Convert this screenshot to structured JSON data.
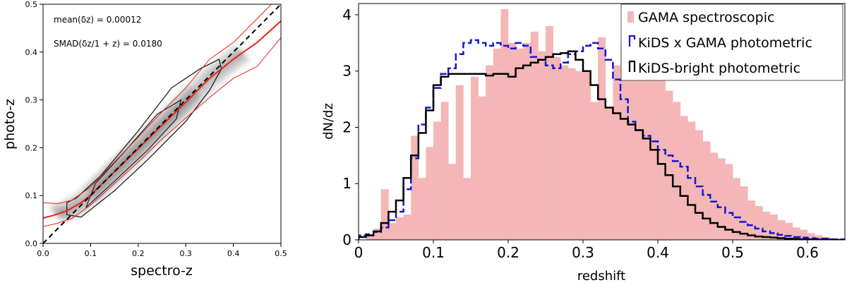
{
  "chart_data": [
    {
      "type": "scatter",
      "xlabel": "spectro-z",
      "ylabel": "photo-z",
      "xlim": [
        0.0,
        0.5
      ],
      "ylim": [
        0.0,
        0.5
      ],
      "xticks": [
        "0.0",
        "0.1",
        "0.2",
        "0.3",
        "0.4",
        "0.5"
      ],
      "yticks": [
        "0.0",
        "0.1",
        "0.2",
        "0.3",
        "0.4",
        "0.5"
      ],
      "annotations": [
        "mean(δz) = 0.00012",
        "SMAD(δz/1 + z) = 0.0180"
      ],
      "one_to_one_line": {
        "x": [
          0.0,
          0.5
        ],
        "y": [
          0.0,
          0.5
        ],
        "color": "#000000",
        "style": "dashed"
      },
      "median_line": {
        "color": "#e8231c",
        "x": [
          0.0,
          0.02,
          0.05,
          0.08,
          0.1,
          0.15,
          0.2,
          0.25,
          0.3,
          0.35,
          0.4,
          0.45,
          0.5
        ],
        "y": [
          0.053,
          0.058,
          0.068,
          0.085,
          0.101,
          0.15,
          0.198,
          0.247,
          0.295,
          0.345,
          0.385,
          0.42,
          0.465
        ]
      },
      "lower_envelope": {
        "color": "#e8231c",
        "x": [
          0.0,
          0.03,
          0.06,
          0.1,
          0.15,
          0.2,
          0.25,
          0.3,
          0.35,
          0.4,
          0.45,
          0.5
        ],
        "y": [
          0.035,
          0.042,
          0.052,
          0.08,
          0.125,
          0.17,
          0.218,
          0.262,
          0.305,
          0.345,
          0.37,
          0.43
        ]
      },
      "upper_envelope": {
        "color": "#e8231c",
        "x": [
          0.0,
          0.03,
          0.06,
          0.1,
          0.15,
          0.2,
          0.25,
          0.3,
          0.35,
          0.4,
          0.45,
          0.48
        ],
        "y": [
          0.085,
          0.083,
          0.09,
          0.118,
          0.17,
          0.222,
          0.275,
          0.325,
          0.385,
          0.42,
          0.47,
          0.5
        ]
      }
    },
    {
      "type": "bar",
      "xlabel": "redshift",
      "ylabel": "dN/dz",
      "xlim": [
        0.0,
        0.65
      ],
      "ylim": [
        0.0,
        4.2
      ],
      "xticks": [
        "0",
        "0.1",
        "0.2",
        "0.3",
        "0.4",
        "0.5",
        "0.6"
      ],
      "yticks": [
        "0",
        "1",
        "2",
        "3",
        "4"
      ],
      "bin_width": 0.01,
      "legend_position": "top-right",
      "series": [
        {
          "name": "GAMA spectroscopic",
          "color": "#f4b6b6",
          "style": "filled",
          "values": [
            0.0,
            0.1,
            0.2,
            0.9,
            0.3,
            0.4,
            0.45,
            1.85,
            1.1,
            1.65,
            2.1,
            2.45,
            1.35,
            2.75,
            1.1,
            2.9,
            2.55,
            3.1,
            3.4,
            4.1,
            3.5,
            3.4,
            3.5,
            3.7,
            3.35,
            3.8,
            3.25,
            3.1,
            3.05,
            3.0,
            3.0,
            2.45,
            3.6,
            2.35,
            3.1,
            3.5,
            4.1,
            3.55,
            3.05,
            2.95,
            3.0,
            2.65,
            2.45,
            2.2,
            2.1,
            1.95,
            1.75,
            1.55,
            1.45,
            1.35,
            1.1,
            0.95,
            0.7,
            0.6,
            0.5,
            0.45,
            0.35,
            0.3,
            0.22,
            0.18,
            0.12,
            0.08,
            0.05,
            0.03,
            0.02,
            0.01
          ]
        },
        {
          "name": "KiDS x GAMA photometric",
          "color": "#1515d6",
          "style": "step-dashed",
          "values": [
            0.08,
            0.1,
            0.14,
            0.22,
            0.35,
            0.5,
            0.9,
            1.45,
            2.05,
            2.35,
            2.7,
            2.95,
            3.05,
            3.3,
            3.5,
            3.55,
            3.5,
            3.45,
            3.5,
            3.45,
            3.4,
            3.5,
            3.45,
            3.25,
            3.2,
            3.1,
            3.05,
            3.15,
            3.3,
            3.35,
            3.45,
            3.5,
            3.4,
            3.2,
            2.85,
            2.5,
            2.1,
            1.95,
            1.85,
            1.75,
            1.6,
            1.5,
            1.4,
            1.3,
            1.1,
            0.95,
            0.8,
            0.68,
            0.58,
            0.48,
            0.4,
            0.32,
            0.26,
            0.2,
            0.15,
            0.12,
            0.09,
            0.07,
            0.05,
            0.04,
            0.03,
            0.02,
            0.02,
            0.01,
            0.01,
            0.0
          ]
        },
        {
          "name": "KiDS-bright photometric",
          "color": "#000000",
          "style": "step-solid",
          "values": [
            0.05,
            0.08,
            0.15,
            0.3,
            0.5,
            0.7,
            1.1,
            1.5,
            1.9,
            2.3,
            2.75,
            2.9,
            2.95,
            2.95,
            2.95,
            2.95,
            2.95,
            2.92,
            2.95,
            2.95,
            2.9,
            3.05,
            3.1,
            3.15,
            3.2,
            3.25,
            3.3,
            3.32,
            3.35,
            3.2,
            3.0,
            2.75,
            2.5,
            2.35,
            2.25,
            2.15,
            2.05,
            1.95,
            1.8,
            1.6,
            1.35,
            1.15,
            0.95,
            0.78,
            0.62,
            0.48,
            0.38,
            0.3,
            0.23,
            0.18,
            0.14,
            0.11,
            0.08,
            0.06,
            0.05,
            0.04,
            0.03,
            0.02,
            0.015,
            0.01,
            0.01,
            0.005,
            0.005,
            0.0,
            0.0,
            0.0
          ]
        }
      ]
    }
  ]
}
